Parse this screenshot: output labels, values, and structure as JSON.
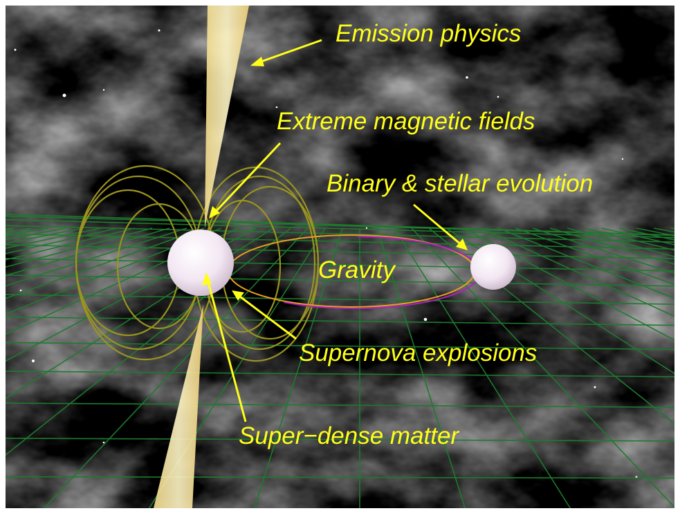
{
  "labels": [
    "Emission physics",
    "Extreme magnetic fields",
    "Binary & stellar evolution",
    "Gravity",
    "Supernova explosions",
    "Super−dense matter"
  ]
}
